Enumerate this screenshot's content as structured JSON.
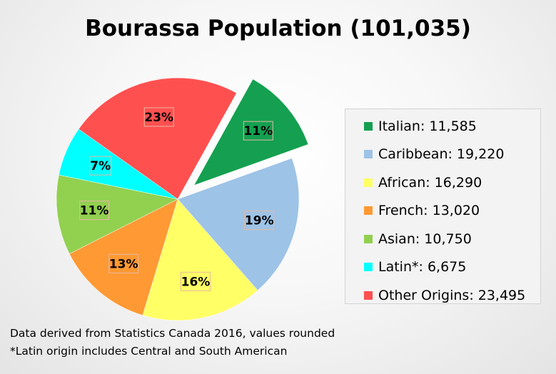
{
  "chart_data": {
    "type": "pie",
    "title": "Bourassa Population (101,035)",
    "slices": [
      {
        "name": "Italian",
        "value": 11585,
        "legend": "Italian: 11,585",
        "pct_label": "11%",
        "color": "#14a050",
        "exploded": true
      },
      {
        "name": "Caribbean",
        "value": 19220,
        "legend": "Caribbean: 19,220",
        "pct_label": "19%",
        "color": "#9dc3e6",
        "exploded": false
      },
      {
        "name": "African",
        "value": 16290,
        "legend": "African: 16,290",
        "pct_label": "16%",
        "color": "#ffff66",
        "exploded": false
      },
      {
        "name": "French",
        "value": 13020,
        "legend": "French: 13,020",
        "pct_label": "13%",
        "color": "#ff9933",
        "exploded": false
      },
      {
        "name": "Asian",
        "value": 10750,
        "legend": "Asian: 10,750",
        "pct_label": "11%",
        "color": "#92d050",
        "exploded": false
      },
      {
        "name": "Latin",
        "value": 6675,
        "legend": "Latin*: 6,675",
        "pct_label": "7%",
        "color": "#00ffff",
        "exploded": false
      },
      {
        "name": "Other Origins",
        "value": 23495,
        "legend": "Other Origins: 23,495",
        "pct_label": "23%",
        "color": "#ff5050",
        "exploded": false
      }
    ],
    "legend_position": "right",
    "label_box_color": "#e6b8a2"
  },
  "notes": {
    "line1": "Data derived from Statistics Canada 2016, values rounded",
    "line2": "*Latin origin includes Central and South American"
  }
}
